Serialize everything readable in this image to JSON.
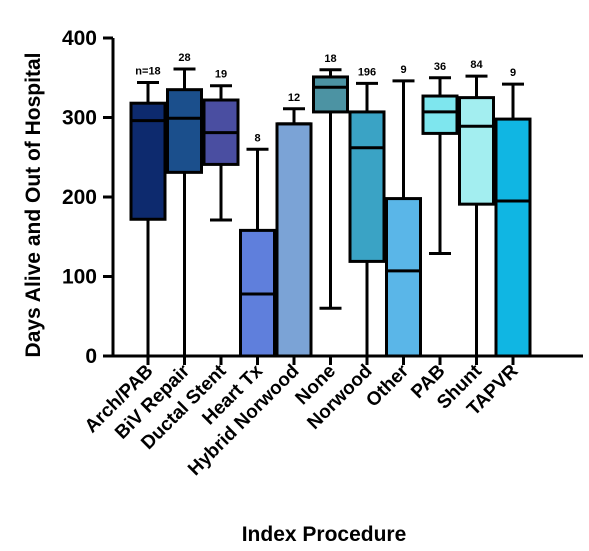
{
  "chart_data": {
    "type": "boxplot",
    "title": "",
    "xlabel": "Index Procedure",
    "ylabel": "Days Alive and Out of Hospital",
    "ylim": [
      0,
      400
    ],
    "yticks": [
      0,
      100,
      200,
      300,
      400
    ],
    "grid": false,
    "legend": "none",
    "categories": [
      "Arch/PAB",
      "BiV Repair",
      "Ductal Stent",
      "Heart Tx",
      "Hybrid Norwood",
      "None",
      "Norwood",
      "Other",
      "PAB",
      "Shunt",
      "TAPVR"
    ],
    "n_labels": [
      "n=18",
      "28",
      "19",
      "8",
      "12",
      "18",
      "196",
      "9",
      "36",
      "84",
      "9"
    ],
    "colors": [
      "#0d2a6e",
      "#1b4f8c",
      "#4a4ea1",
      "#5f7fdc",
      "#7ba3d6",
      "#4c93a3",
      "#3aa3c5",
      "#5ab6e8",
      "#7ee6ee",
      "#a3eef0",
      "#10b6e3"
    ],
    "boxes": [
      {
        "whisker_low": 0,
        "q1": 172,
        "median": 296,
        "q3": 318,
        "whisker_high": 344
      },
      {
        "whisker_low": 0,
        "q1": 231,
        "median": 299,
        "q3": 335,
        "whisker_high": 361
      },
      {
        "whisker_low": 171,
        "q1": 241,
        "median": 281,
        "q3": 322,
        "whisker_high": 340
      },
      {
        "whisker_low": 0,
        "q1": 0,
        "median": 78,
        "q3": 158,
        "whisker_high": 260
      },
      {
        "whisker_low": 0,
        "q1": 0,
        "median": 292,
        "q3": 292,
        "whisker_high": 311
      },
      {
        "whisker_low": 60,
        "q1": 307,
        "median": 338,
        "q3": 351,
        "whisker_high": 360
      },
      {
        "whisker_low": 0,
        "q1": 119,
        "median": 262,
        "q3": 307,
        "whisker_high": 343
      },
      {
        "whisker_low": 0,
        "q1": 0,
        "median": 107,
        "q3": 198,
        "whisker_high": 346
      },
      {
        "whisker_low": 129,
        "q1": 280,
        "median": 307,
        "q3": 327,
        "whisker_high": 350
      },
      {
        "whisker_low": 0,
        "q1": 191,
        "median": 289,
        "q3": 325,
        "whisker_high": 352
      },
      {
        "whisker_low": 0,
        "q1": 0,
        "median": 195,
        "q3": 298,
        "whisker_high": 342
      }
    ]
  }
}
